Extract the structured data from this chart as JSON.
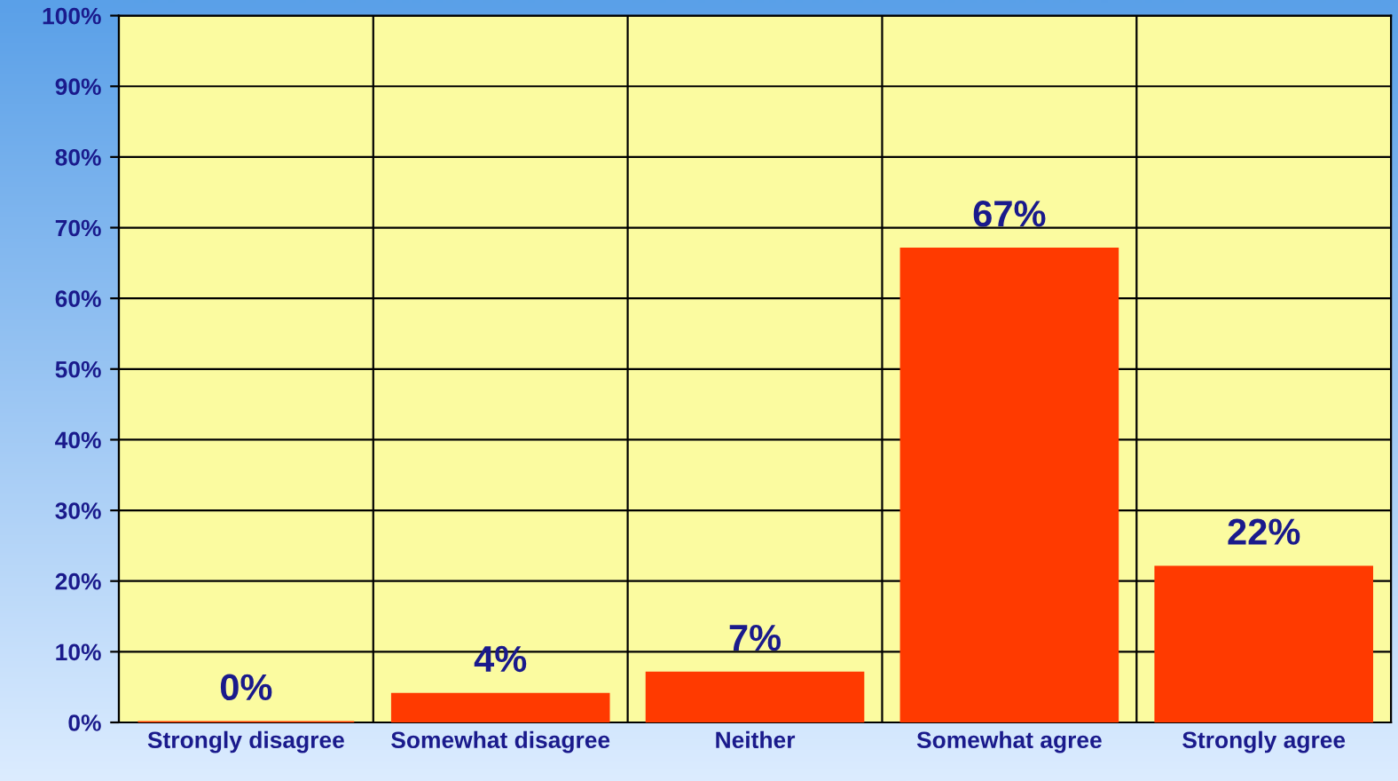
{
  "chart_data": {
    "type": "bar",
    "categories": [
      "Strongly disagree",
      "Somewhat disagree",
      "Neither",
      "Somewhat agree",
      "Strongly agree"
    ],
    "values": [
      0,
      4,
      7,
      67,
      22
    ],
    "color": "#ff3a00",
    "value_labels": [
      "0%",
      "4%",
      "7%",
      "67%",
      "22%"
    ],
    "ylim": [
      0,
      100
    ],
    "yticks": [
      {
        "value": 0,
        "label": "0%"
      },
      {
        "value": 10,
        "label": "10%"
      },
      {
        "value": 20,
        "label": "20%"
      },
      {
        "value": 30,
        "label": "30%"
      },
      {
        "value": 40,
        "label": "40%"
      },
      {
        "value": 50,
        "label": "50%"
      },
      {
        "value": 60,
        "label": "60%"
      },
      {
        "value": 70,
        "label": "70%"
      },
      {
        "value": 80,
        "label": "80%"
      },
      {
        "value": 90,
        "label": "90%"
      },
      {
        "value": 100,
        "label": "100%"
      }
    ],
    "grid": true,
    "legend": false
  }
}
